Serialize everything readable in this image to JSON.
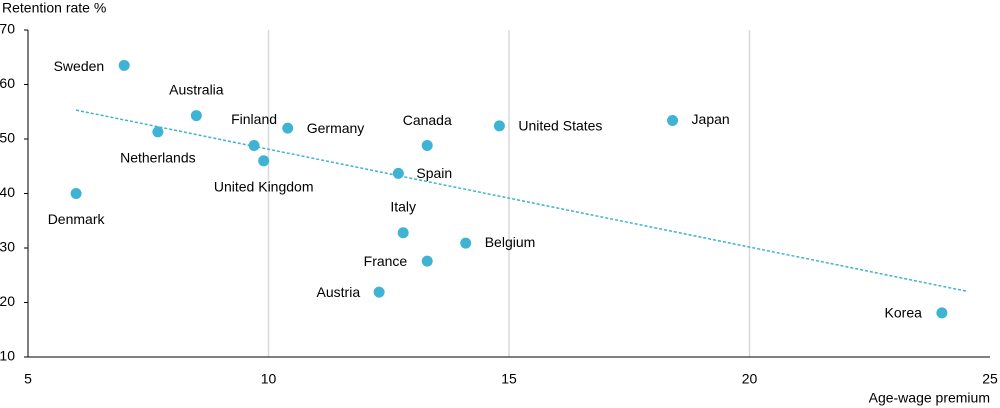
{
  "chart_data": {
    "type": "scatter",
    "y_label": "Retention rate %",
    "x_label": "Age-wage premium",
    "labels": [
      "Sweden",
      "Australia",
      "Netherlands",
      "Finland",
      "United Kingdom",
      "Germany",
      "Denmark",
      "Canada",
      "Spain",
      "Italy",
      "Belgium",
      "France",
      "Austria",
      "United States",
      "Japan",
      "Korea"
    ],
    "x": [
      7.0,
      8.5,
      7.7,
      9.7,
      9.9,
      10.4,
      6.0,
      13.3,
      12.7,
      12.8,
      14.1,
      13.3,
      12.3,
      14.8,
      18.4,
      24.0
    ],
    "values": [
      63.5,
      54.3,
      51.3,
      48.8,
      46.0,
      52.0,
      40.0,
      48.8,
      43.7,
      32.8,
      30.9,
      27.6,
      21.9,
      52.4,
      53.4,
      18.1
    ],
    "color": "#3fb3d3",
    "trendline": {
      "x": [
        6.0,
        24.5
      ],
      "values": [
        55.3,
        22.1
      ]
    },
    "xlim": [
      5,
      25
    ],
    "xticks": [
      5,
      10,
      15,
      20,
      25
    ],
    "ylim": [
      10,
      70
    ],
    "yticks": [
      10,
      20,
      30,
      40,
      50,
      60,
      70
    ],
    "grid": "x"
  }
}
